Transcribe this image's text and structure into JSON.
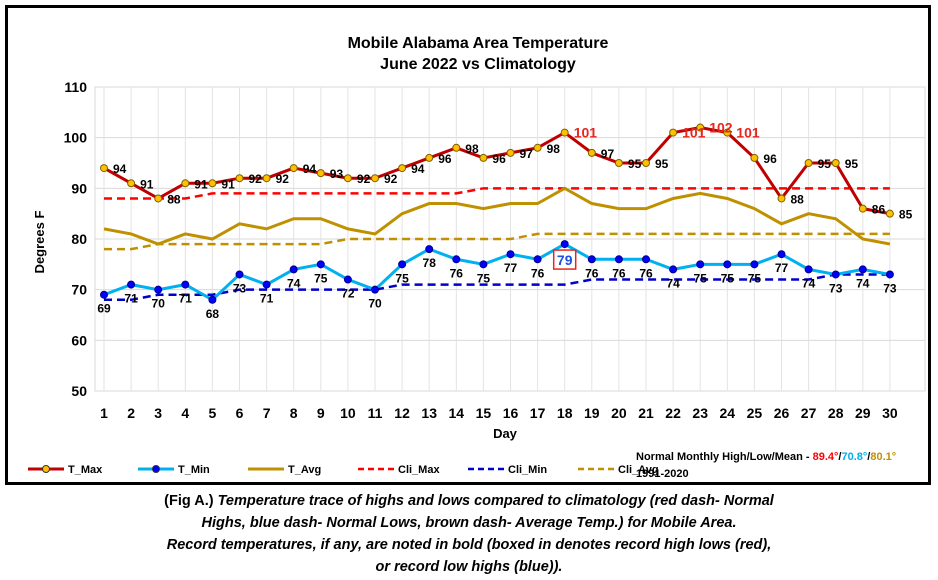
{
  "chart_data": {
    "type": "line",
    "title": "Mobile Alabama Area Temperature",
    "subtitle": "June 2022 vs Climatology",
    "xlabel": "Day",
    "ylabel": "Degrees F",
    "ylim": [
      50,
      110
    ],
    "yticks": [
      "50",
      "60",
      "70",
      "80",
      "90",
      "100",
      "110"
    ],
    "x": [
      "1",
      "2",
      "3",
      "4",
      "5",
      "6",
      "7",
      "8",
      "9",
      "10",
      "11",
      "12",
      "13",
      "14",
      "15",
      "16",
      "17",
      "18",
      "19",
      "20",
      "21",
      "22",
      "23",
      "24",
      "25",
      "26",
      "27",
      "28",
      "29",
      "30"
    ],
    "grid": true,
    "legend_position": "bottom-left",
    "series": [
      {
        "name": "T_Max",
        "color": "#c00000",
        "style": "solid",
        "marker": "circle-gold",
        "values": [
          94,
          91,
          88,
          91,
          91,
          92,
          92,
          94,
          93,
          92,
          92,
          94,
          96,
          98,
          96,
          97,
          98,
          101,
          97,
          95,
          95,
          101,
          102,
          101,
          96,
          88,
          95,
          95,
          86,
          85
        ]
      },
      {
        "name": "T_Min",
        "color": "#00b0f0",
        "style": "solid",
        "marker": "circle-blue",
        "values": [
          69,
          71,
          70,
          71,
          68,
          73,
          71,
          74,
          75,
          72,
          70,
          75,
          78,
          76,
          75,
          77,
          76,
          79,
          76,
          76,
          76,
          74,
          75,
          75,
          75,
          77,
          74,
          73,
          74,
          73
        ]
      },
      {
        "name": "T_Avg",
        "color": "#bf9000",
        "style": "solid",
        "marker": "none",
        "values": [
          82,
          81,
          79,
          81,
          80,
          83,
          82,
          84,
          84,
          82,
          81,
          85,
          87,
          87,
          86,
          87,
          87,
          90,
          87,
          86,
          86,
          88,
          89,
          88,
          86,
          83,
          85,
          84,
          80,
          79
        ]
      },
      {
        "name": "Cli_Max",
        "color": "#ff0000",
        "style": "dash",
        "values": [
          88,
          88,
          88,
          88,
          89,
          89,
          89,
          89,
          89,
          89,
          89,
          89,
          89,
          89,
          90,
          90,
          90,
          90,
          90,
          90,
          90,
          90,
          90,
          90,
          90,
          90,
          90,
          90,
          90,
          90
        ]
      },
      {
        "name": "Cli_Min",
        "color": "#0000cc",
        "style": "dash",
        "values": [
          68,
          68,
          69,
          69,
          69,
          70,
          70,
          70,
          70,
          70,
          70,
          71,
          71,
          71,
          71,
          71,
          71,
          71,
          72,
          72,
          72,
          72,
          72,
          72,
          72,
          72,
          72,
          73,
          73,
          73
        ]
      },
      {
        "name": "Cli_Avg",
        "color": "#bf9000",
        "style": "dash",
        "values": [
          78,
          78,
          79,
          79,
          79,
          79,
          79,
          79,
          79,
          80,
          80,
          80,
          80,
          80,
          80,
          80,
          81,
          81,
          81,
          81,
          81,
          81,
          81,
          81,
          81,
          81,
          81,
          81,
          81,
          81
        ]
      }
    ],
    "max_labels": [
      "94",
      "91",
      "88",
      "91",
      "91",
      "92",
      "92",
      "94",
      "93",
      "92",
      "92",
      "94",
      "96",
      "98",
      "96",
      "97",
      "98",
      "101",
      "97",
      "95",
      "95",
      "101",
      "102",
      "101",
      "96",
      "88",
      "95",
      "95",
      "86",
      "85"
    ],
    "min_labels": [
      "69",
      "71",
      "70",
      "71",
      "68",
      "73",
      "71",
      "74",
      "75",
      "72",
      "70",
      "75",
      "78",
      "76",
      "75",
      "77",
      "76",
      "79",
      "76",
      "76",
      "76",
      "74",
      "75",
      "75",
      "75",
      "77",
      "74",
      "73",
      "74",
      "73"
    ],
    "record_max_days": [
      18,
      22,
      23,
      24
    ],
    "record_low_high_day": 18,
    "normals": {
      "label": "Normal Monthly High/Low/Mean - ",
      "high": "89.4°",
      "low": "70.8°",
      "mean": "80.1°",
      "sep": "/",
      "period": "1991-2020",
      "high_color": "#ff0000",
      "low_color": "#00b0f0",
      "mean_color": "#bf9000"
    }
  },
  "caption": {
    "fig": "(Fig A.)",
    "line1": "Temperature trace of highs and lows compared to climatology (red dash- Normal",
    "line2": "Highs, blue dash- Normal Lows, brown dash- Average Temp.) for Mobile Area.",
    "line3": "Record temperatures, if any, are noted in bold (boxed in denotes record high lows (red),",
    "line4": "or record low highs (blue))."
  }
}
